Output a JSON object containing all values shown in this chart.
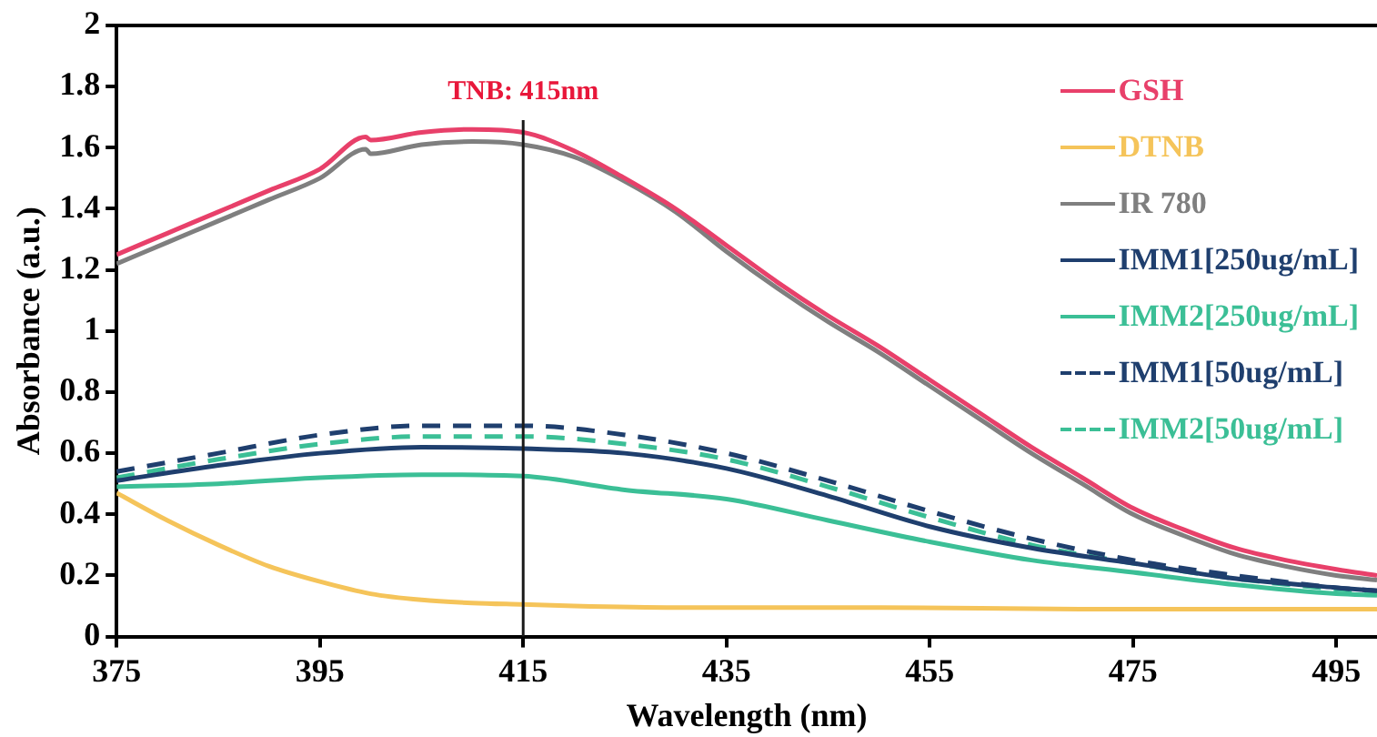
{
  "chart_data": {
    "type": "line",
    "xlabel": "Wavelength (nm)",
    "ylabel": "Absorbance (a.u.)",
    "xlim": [
      375,
      499
    ],
    "xticks": [
      375,
      395,
      415,
      435,
      455,
      475,
      495
    ],
    "ylim": [
      0,
      2
    ],
    "yticks": [
      0,
      0.2,
      0.4,
      0.6,
      0.8,
      1,
      1.2,
      1.4,
      1.6,
      1.8,
      2
    ],
    "grid": false,
    "legend": "top right",
    "marker": "none",
    "ref_lines": [
      {
        "axis": "x",
        "value": 415,
        "label": "TNB: 415nm",
        "color": "#1a1a1a"
      }
    ],
    "series": [
      {
        "name": "GSH",
        "color": "#e8406a",
        "line_style": "solid",
        "x": [
          375,
          380,
          385,
          390,
          395,
          399.5,
          400,
          405,
          410,
          415,
          420,
          425,
          430,
          435,
          440,
          445,
          450,
          455,
          460,
          465,
          470,
          475,
          480,
          485,
          490,
          495,
          499
        ],
        "values": [
          1.25,
          1.32,
          1.39,
          1.46,
          1.53,
          1.635,
          1.625,
          1.65,
          1.66,
          1.65,
          1.59,
          1.5,
          1.4,
          1.28,
          1.16,
          1.05,
          0.95,
          0.84,
          0.73,
          0.62,
          0.52,
          0.42,
          0.35,
          0.29,
          0.25,
          0.22,
          0.2
        ]
      },
      {
        "name": "DTNB",
        "color": "#f5c45a",
        "line_style": "solid",
        "x": [
          375,
          380,
          385,
          390,
          395,
          400,
          405,
          410,
          415,
          420,
          430,
          450,
          470,
          499
        ],
        "values": [
          0.47,
          0.38,
          0.3,
          0.23,
          0.18,
          0.14,
          0.12,
          0.11,
          0.105,
          0.1,
          0.095,
          0.095,
          0.09,
          0.09
        ]
      },
      {
        "name": "IR 780",
        "color": "#7f7f7f",
        "line_style": "solid",
        "x": [
          375,
          380,
          385,
          390,
          395,
          399.5,
          400,
          405,
          410,
          415,
          420,
          425,
          430,
          435,
          440,
          445,
          450,
          455,
          460,
          465,
          470,
          475,
          480,
          485,
          490,
          495,
          499
        ],
        "values": [
          1.22,
          1.29,
          1.36,
          1.43,
          1.5,
          1.595,
          1.58,
          1.61,
          1.62,
          1.61,
          1.57,
          1.49,
          1.39,
          1.26,
          1.14,
          1.03,
          0.93,
          0.82,
          0.71,
          0.6,
          0.5,
          0.4,
          0.33,
          0.27,
          0.23,
          0.2,
          0.185
        ]
      },
      {
        "name": "IMM1[250ug/mL]",
        "color": "#1f3f6e",
        "line_style": "solid",
        "x": [
          375,
          385,
          395,
          405,
          415,
          425,
          435,
          445,
          455,
          465,
          475,
          485,
          495,
          499
        ],
        "values": [
          0.51,
          0.56,
          0.6,
          0.62,
          0.615,
          0.6,
          0.55,
          0.46,
          0.36,
          0.29,
          0.24,
          0.19,
          0.16,
          0.15
        ]
      },
      {
        "name": "IMM2[250ug/mL]",
        "color": "#3bbf96",
        "line_style": "solid",
        "x": [
          375,
          385,
          395,
          405,
          415,
          425,
          435,
          445,
          455,
          465,
          475,
          485,
          495,
          499
        ],
        "values": [
          0.49,
          0.5,
          0.52,
          0.53,
          0.525,
          0.48,
          0.45,
          0.38,
          0.31,
          0.25,
          0.21,
          0.17,
          0.14,
          0.135
        ]
      },
      {
        "name": "IMM1[50ug/mL]",
        "color": "#1f3f6e",
        "line_style": "dashed",
        "x": [
          375,
          385,
          395,
          405,
          415,
          425,
          435,
          445,
          455,
          465,
          475,
          485,
          495,
          499
        ],
        "values": [
          0.54,
          0.6,
          0.66,
          0.69,
          0.69,
          0.66,
          0.6,
          0.51,
          0.41,
          0.32,
          0.25,
          0.2,
          0.16,
          0.15
        ]
      },
      {
        "name": "IMM2[50ug/mL]",
        "color": "#3bbf96",
        "line_style": "dashed",
        "x": [
          375,
          385,
          395,
          405,
          415,
          425,
          435,
          445,
          455,
          465,
          475,
          485,
          495,
          499
        ],
        "values": [
          0.52,
          0.58,
          0.63,
          0.655,
          0.655,
          0.63,
          0.58,
          0.49,
          0.39,
          0.3,
          0.24,
          0.19,
          0.155,
          0.145
        ]
      }
    ]
  }
}
